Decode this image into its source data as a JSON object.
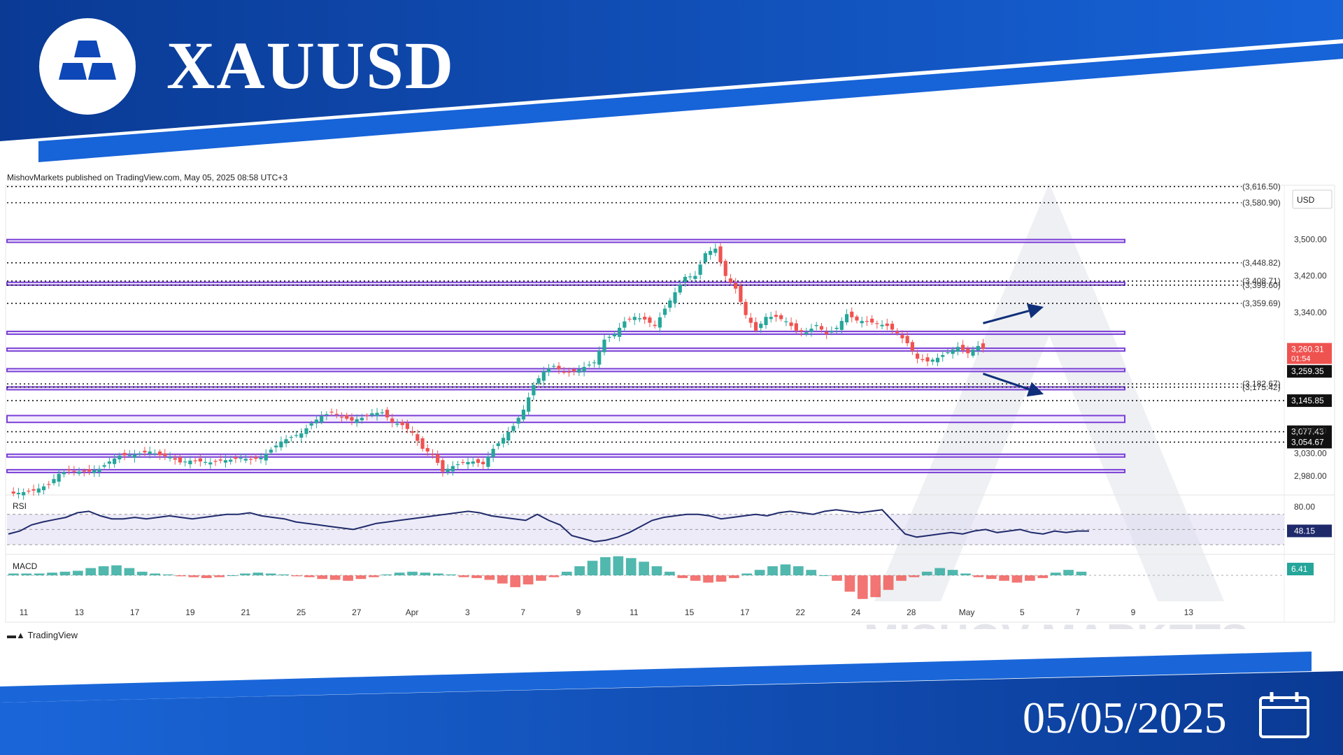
{
  "header": {
    "title": "XAUUSD",
    "date": "05/05/2025",
    "published": "MishovMarkets published on TradingView.com, May 05, 2025 08:58 UTC+3",
    "tradingview_label": "TradingView",
    "watermark": "MISHOV MARKETS"
  },
  "colors": {
    "brand_blue": "#0d47b8",
    "brand_dark": "#0a3a94",
    "zone_border": "#7a3fd6",
    "zone_fill": "#e9ddff",
    "up_candle": "#26a69a",
    "down_candle": "#ef5350",
    "rsi_line": "#1f2a6b",
    "arrow": "#0f2f7a"
  },
  "chart_data": [
    {
      "type": "candlestick",
      "title": "XAUUSD",
      "currency": "USD",
      "ylim": [
        2940,
        3620
      ],
      "y_ticks": [
        2980,
        3030,
        3080,
        3340,
        3420,
        3500
      ],
      "y_tick_labels": [
        "2,980.00",
        "3,030.00",
        "3,080.00",
        "3,340.00",
        "3,420.00",
        "3,500.00"
      ],
      "x_tick_labels": [
        "11",
        "13",
        "17",
        "19",
        "21",
        "25",
        "27",
        "Apr",
        "3",
        "7",
        "9",
        "11",
        "15",
        "17",
        "22",
        "24",
        "28",
        "May",
        "5",
        "7",
        "9",
        "13"
      ],
      "close_path": [
        [
          0,
          2940
        ],
        [
          5,
          2948
        ],
        [
          8,
          2962
        ],
        [
          10,
          2985
        ],
        [
          12,
          2992
        ],
        [
          14,
          2990
        ],
        [
          16,
          2990
        ],
        [
          18,
          2996
        ],
        [
          20,
          3012
        ],
        [
          22,
          3025
        ],
        [
          24,
          3026
        ],
        [
          26,
          3030
        ],
        [
          28,
          3034
        ],
        [
          30,
          3026
        ],
        [
          32,
          3022
        ],
        [
          34,
          3010
        ],
        [
          36,
          3014
        ],
        [
          38,
          3012
        ],
        [
          40,
          3010
        ],
        [
          42,
          3014
        ],
        [
          44,
          3016
        ],
        [
          46,
          3020
        ],
        [
          48,
          3016
        ],
        [
          50,
          3020
        ],
        [
          52,
          3038
        ],
        [
          54,
          3056
        ],
        [
          56,
          3066
        ],
        [
          58,
          3074
        ],
        [
          60,
          3096
        ],
        [
          62,
          3112
        ],
        [
          64,
          3120
        ],
        [
          66,
          3110
        ],
        [
          68,
          3102
        ],
        [
          70,
          3108
        ],
        [
          72,
          3118
        ],
        [
          74,
          3120
        ],
        [
          76,
          3098
        ],
        [
          78,
          3092
        ],
        [
          80,
          3075
        ],
        [
          82,
          3040
        ],
        [
          84,
          3028
        ],
        [
          86,
          2990
        ],
        [
          88,
          3002
        ],
        [
          90,
          3010
        ],
        [
          92,
          3012
        ],
        [
          94,
          3006
        ],
        [
          96,
          3040
        ],
        [
          98,
          3064
        ],
        [
          100,
          3090
        ],
        [
          102,
          3126
        ],
        [
          104,
          3180
        ],
        [
          106,
          3210
        ],
        [
          108,
          3222
        ],
        [
          110,
          3208
        ],
        [
          112,
          3210
        ],
        [
          114,
          3220
        ],
        [
          116,
          3230
        ],
        [
          118,
          3280
        ],
        [
          120,
          3292
        ],
        [
          122,
          3320
        ],
        [
          124,
          3330
        ],
        [
          126,
          3324
        ],
        [
          128,
          3310
        ],
        [
          130,
          3348
        ],
        [
          132,
          3384
        ],
        [
          134,
          3418
        ],
        [
          136,
          3420
        ],
        [
          138,
          3470
        ],
        [
          140,
          3480
        ],
        [
          142,
          3420
        ],
        [
          144,
          3392
        ],
        [
          146,
          3334
        ],
        [
          148,
          3300
        ],
        [
          150,
          3330
        ],
        [
          152,
          3330
        ],
        [
          154,
          3320
        ],
        [
          156,
          3300
        ],
        [
          158,
          3296
        ],
        [
          160,
          3312
        ],
        [
          162,
          3292
        ],
        [
          164,
          3306
        ],
        [
          166,
          3336
        ],
        [
          168,
          3322
        ],
        [
          170,
          3320
        ],
        [
          172,
          3315
        ],
        [
          174,
          3310
        ],
        [
          176,
          3294
        ],
        [
          178,
          3272
        ],
        [
          180,
          3238
        ],
        [
          182,
          3232
        ],
        [
          184,
          3240
        ],
        [
          186,
          3252
        ],
        [
          188,
          3264
        ],
        [
          190,
          3250
        ],
        [
          192,
          3266
        ],
        [
          193,
          3260
        ]
      ],
      "horizontal_levels": [
        {
          "value": 3616.5,
          "label": "(3,616.50)"
        },
        {
          "value": 3580.9,
          "label": "(3,580.90)"
        },
        {
          "value": 3448.82,
          "label": "(3,448.82)"
        },
        {
          "value": 3408.71,
          "label": "(3,408.71)"
        },
        {
          "value": 3399.6,
          "label": "(3,399.60)"
        },
        {
          "value": 3359.69,
          "label": "(3,359.69)"
        },
        {
          "value": 3182.67,
          "label": "(3,182.67)"
        },
        {
          "value": 3175.42,
          "label": "(3,175.42)"
        },
        {
          "value": 3145.85,
          "label": "3,145.85"
        },
        {
          "value": 3077.43,
          "label": "3,077.43"
        },
        {
          "value": 3054.67,
          "label": "3,054.67"
        }
      ],
      "zones": [
        {
          "from": 3494,
          "to": 3500
        },
        {
          "from": 3400,
          "to": 3406
        },
        {
          "from": 3292,
          "to": 3298
        },
        {
          "from": 3255,
          "to": 3261
        },
        {
          "from": 3210,
          "to": 3216
        },
        {
          "from": 3170,
          "to": 3176
        },
        {
          "from": 3098,
          "to": 3113
        },
        {
          "from": 3022,
          "to": 3028
        },
        {
          "from": 2988,
          "to": 2994
        }
      ],
      "price_labels": [
        {
          "value": 3260.31,
          "label": "3,260.31",
          "sub": "01:54",
          "color": "#ef5350"
        },
        {
          "value": 3259.35,
          "label": "3,259.35",
          "color": "#111111"
        }
      ],
      "arrows": [
        {
          "direction": "up",
          "from": [
            193,
            3316
          ],
          "to": [
            205,
            3352
          ]
        },
        {
          "direction": "down",
          "from": [
            193,
            3205
          ],
          "to": [
            205,
            3160
          ]
        }
      ]
    },
    {
      "type": "line",
      "title": "RSI",
      "ylim": [
        20,
        90
      ],
      "y_tick_labels": [
        "80.00"
      ],
      "current_label": "48.15",
      "band": [
        30,
        70
      ],
      "values": [
        44,
        48,
        56,
        60,
        63,
        66,
        72,
        74,
        68,
        64,
        64,
        66,
        64,
        66,
        68,
        66,
        64,
        66,
        68,
        70,
        70,
        72,
        68,
        66,
        64,
        60,
        58,
        56,
        54,
        52,
        50,
        54,
        58,
        60,
        62,
        64,
        66,
        68,
        70,
        72,
        74,
        72,
        68,
        66,
        64,
        62,
        70,
        62,
        56,
        42,
        38,
        34,
        36,
        40,
        46,
        54,
        62,
        66,
        68,
        70,
        70,
        68,
        64,
        66,
        68,
        70,
        68,
        72,
        74,
        72,
        70,
        74,
        76,
        74,
        72,
        74,
        76,
        60,
        44,
        40,
        42,
        44,
        46,
        44,
        48,
        50,
        46,
        48,
        50,
        46,
        44,
        48,
        46,
        48,
        48
      ]
    },
    {
      "type": "bar",
      "title": "MACD",
      "current_label": "6.41",
      "values": [
        2,
        2,
        2,
        3,
        4,
        5,
        8,
        10,
        11,
        8,
        4,
        2,
        1,
        -1,
        -2,
        -3,
        -2,
        0,
        2,
        3,
        2,
        1,
        -1,
        -2,
        -4,
        -5,
        -6,
        -4,
        -2,
        1,
        3,
        4,
        3,
        2,
        1,
        -2,
        -3,
        -5,
        -9,
        -13,
        -10,
        -6,
        -2,
        4,
        10,
        16,
        20,
        21,
        19,
        15,
        10,
        4,
        -3,
        -6,
        -8,
        -7,
        -3,
        2,
        6,
        10,
        12,
        10,
        6,
        0,
        -6,
        -18,
        -26,
        -24,
        -16,
        -6,
        -2,
        4,
        8,
        6,
        2,
        -2,
        -4,
        -6,
        -8,
        -6,
        -3,
        3,
        6,
        4
      ]
    }
  ]
}
